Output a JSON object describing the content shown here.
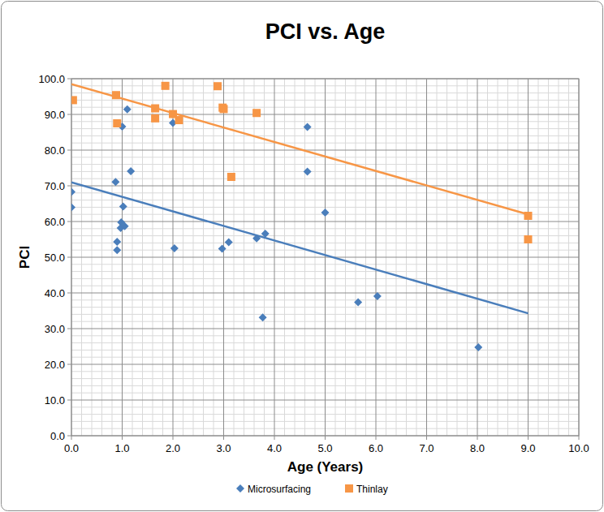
{
  "chart_data": {
    "type": "scatter",
    "title": "PCI vs. Age",
    "x_label": "Age (Years)",
    "y_label": "PCI",
    "xlim": [
      0,
      10
    ],
    "ylim": [
      0,
      100
    ],
    "xticks": [
      {
        "value": 0,
        "label": "0.0"
      },
      {
        "value": 1,
        "label": "1.0"
      },
      {
        "value": 2,
        "label": "2.0"
      },
      {
        "value": 3,
        "label": "3.0"
      },
      {
        "value": 4,
        "label": "4.0"
      },
      {
        "value": 5,
        "label": "5.0"
      },
      {
        "value": 6,
        "label": "6.0"
      },
      {
        "value": 7,
        "label": "7.0"
      },
      {
        "value": 8,
        "label": "8.0"
      },
      {
        "value": 9,
        "label": "9.0"
      },
      {
        "value": 10,
        "label": "10.0"
      }
    ],
    "yticks": [
      {
        "value": 0,
        "label": "0.0"
      },
      {
        "value": 10,
        "label": "10.0"
      },
      {
        "value": 20,
        "label": "20.0"
      },
      {
        "value": 30,
        "label": "30.0"
      },
      {
        "value": 40,
        "label": "40.0"
      },
      {
        "value": 50,
        "label": "50.0"
      },
      {
        "value": 60,
        "label": "60.0"
      },
      {
        "value": 70,
        "label": "70.0"
      },
      {
        "value": 80,
        "label": "80.0"
      },
      {
        "value": 90,
        "label": "90.0"
      },
      {
        "value": 100,
        "label": "100.0"
      }
    ],
    "grid": true,
    "legend": "bottom",
    "series": [
      {
        "name": "Microsurfacing",
        "color": "#4a7ebb",
        "marker": "diamond",
        "x": [
          0.0,
          0.0,
          0.87,
          0.9,
          0.9,
          0.98,
          0.97,
          1.0,
          1.02,
          1.05,
          1.1,
          1.17,
          2.0,
          2.03,
          2.97,
          3.1,
          3.65,
          3.77,
          3.82,
          4.65,
          4.65,
          5.0,
          5.65,
          6.03,
          8.02
        ],
        "values": [
          68.3,
          64.0,
          71.1,
          54.3,
          52.0,
          59.8,
          58.2,
          86.6,
          64.2,
          58.7,
          91.4,
          74.1,
          87.6,
          52.5,
          52.4,
          54.2,
          55.3,
          33.1,
          56.6,
          86.5,
          74.0,
          62.5,
          37.4,
          39.1,
          24.8
        ],
        "trendline": {
          "x": [
            0,
            9
          ],
          "values": [
            71.0,
            34.3
          ]
        }
      },
      {
        "name": "Thinlay",
        "color": "#f79646",
        "marker": "square",
        "x": [
          0.03,
          0.88,
          0.9,
          1.65,
          1.65,
          1.85,
          2.0,
          2.12,
          2.88,
          2.98,
          3.0,
          3.15,
          3.65,
          9.0,
          9.0
        ],
        "values": [
          94.0,
          95.4,
          87.5,
          91.7,
          88.9,
          98.0,
          90.1,
          88.4,
          97.9,
          91.9,
          91.5,
          72.5,
          90.4,
          61.6,
          55.0
        ],
        "trendline": {
          "x": [
            0,
            9
          ],
          "values": [
            98.5,
            62.0
          ]
        }
      }
    ]
  }
}
